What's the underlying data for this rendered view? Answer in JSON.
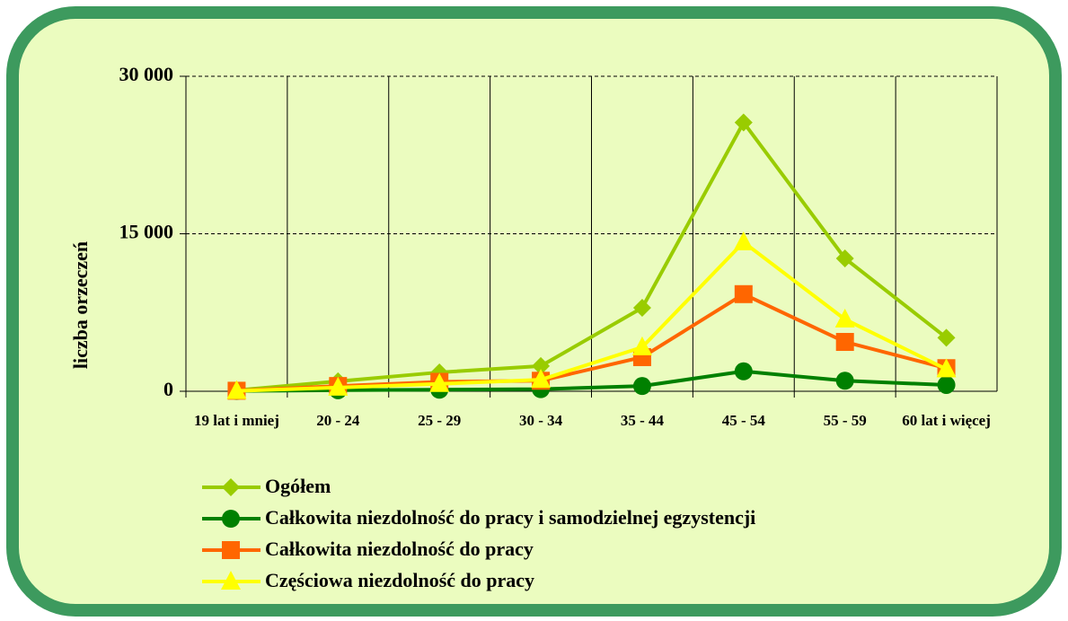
{
  "chart_data": {
    "type": "line",
    "y_label": "liczba orzeczeń",
    "categories": [
      "19 lat i mniej",
      "20 - 24",
      "25 - 29",
      "30 - 34",
      "35 - 44",
      "45 - 54",
      "55 - 59",
      "60 lat i więcej"
    ],
    "series": [
      {
        "name": "Ogółem",
        "color": "#99cc00",
        "marker": "diamond",
        "values": [
          100,
          950,
          1800,
          2400,
          7950,
          25600,
          12650,
          5100
        ]
      },
      {
        "name": "Całkowita niezdolność do pracy i samodzielnej egzystencji",
        "color": "#008000",
        "marker": "circle",
        "values": [
          30,
          100,
          150,
          200,
          500,
          1900,
          1000,
          600
        ]
      },
      {
        "name": "Całkowita niezdolność do pracy",
        "color": "#ff6600",
        "marker": "square",
        "values": [
          50,
          500,
          900,
          1000,
          3250,
          9250,
          4700,
          2200
        ]
      },
      {
        "name": "Częściowa niezdolność do pracy",
        "color": "#ffff00",
        "marker": "triangle",
        "values": [
          30,
          350,
          700,
          1100,
          4200,
          14200,
          6850,
          2100
        ]
      }
    ],
    "ylim": [
      0,
      30000
    ],
    "yticks": [
      0,
      {
        "value": 15000,
        "label": "15 000"
      },
      {
        "value": 30000,
        "label": "30 000"
      }
    ],
    "grid": true
  }
}
